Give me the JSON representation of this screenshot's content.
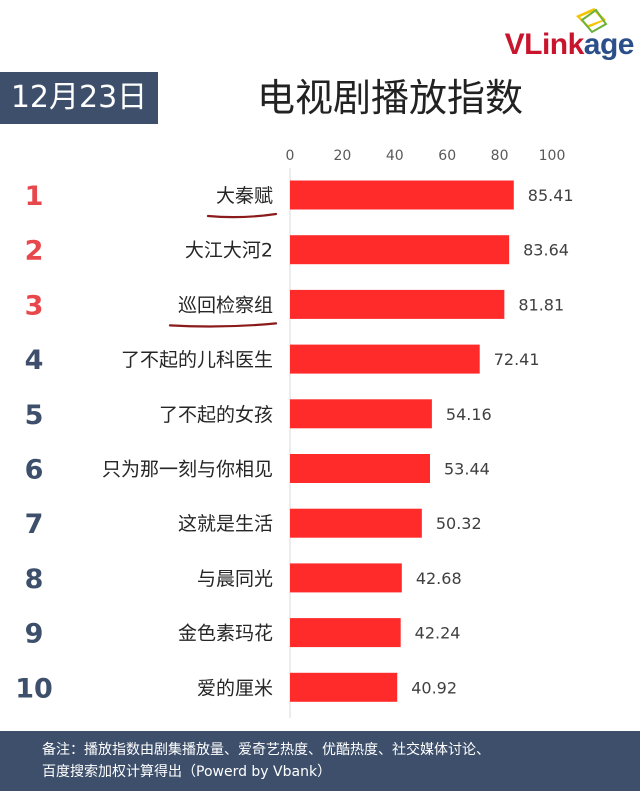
{
  "header": {
    "date": "12月23日",
    "title": "电视剧播放指数",
    "logo": "VLinkage"
  },
  "colors": {
    "bar": "#ff2b2b",
    "rank_top": "#e8484c",
    "rank_rest": "#3d4f6b",
    "band": "#3d4f6b",
    "underline": "#8b1a1a"
  },
  "chart_data": {
    "type": "bar",
    "orientation": "horizontal",
    "title": "电视剧播放指数",
    "xlim": [
      0,
      100
    ],
    "xticks": [
      0,
      20,
      40,
      60,
      80,
      100
    ],
    "ranks": [
      "1",
      "2",
      "3",
      "4",
      "5",
      "6",
      "7",
      "8",
      "9",
      "10"
    ],
    "categories": [
      "大秦赋",
      "大江大河2",
      "巡回检察组",
      "了不起的儿科医生",
      "了不起的女孩",
      "只为那一刻与你相见",
      "这就是生活",
      "与晨同光",
      "金色素玛花",
      "爱的厘米"
    ],
    "values": [
      85.41,
      83.64,
      81.81,
      72.41,
      54.16,
      53.44,
      50.32,
      42.68,
      42.24,
      40.92
    ],
    "value_labels": [
      "85.41",
      "83.64",
      "81.81",
      "72.41",
      "54.16",
      "53.44",
      "50.32",
      "42.68",
      "42.24",
      "40.92"
    ],
    "underlined": [
      "大秦赋",
      "巡回检察组"
    ]
  },
  "footer": {
    "note_line1": "备注：播放指数由剧集播放量、爱奇艺热度、优酷热度、社交媒体讨论、",
    "note_line2": "百度搜索加权计算得出（Powerd by Vbank）"
  }
}
